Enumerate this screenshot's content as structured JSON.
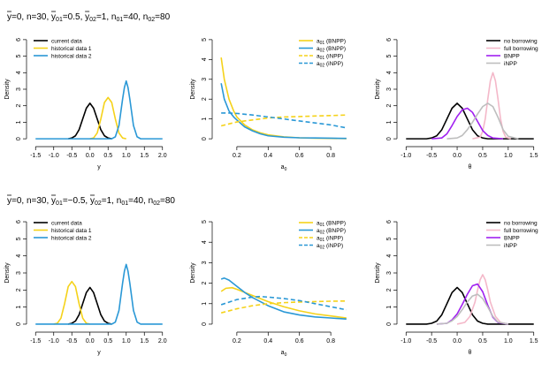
{
  "rows": [
    {
      "title": {
        "ybar": "y",
        "text1": "=0, n=30, ",
        "y01": "y",
        "sub01": "01",
        "text2": "=0.5, ",
        "y02": "y",
        "sub02": "02",
        "text3": "=1, n",
        "sub03": "01",
        "text4": "=40, n",
        "sub04": "02",
        "text5": "=80"
      }
    },
    {
      "title": {
        "ybar": "y",
        "text1": "=0, n=30, ",
        "y01": "y",
        "sub01": "01",
        "text2": "=−0.5, ",
        "y02": "y",
        "sub02": "02",
        "text3": "=1, n",
        "sub03": "01",
        "text4": "=40, n",
        "sub04": "02",
        "text5": "=80"
      }
    }
  ],
  "chart_data": [
    {
      "type": "line",
      "row": 0,
      "col": 0,
      "xlabel": "y",
      "ylabel": "Density",
      "xlim": [
        -1.5,
        2.0
      ],
      "ylim": [
        0,
        6
      ],
      "xticks": [
        "-1.5",
        "-1.0",
        "-0.5",
        "0.0",
        "0.5",
        "1.0",
        "1.5",
        "2.0"
      ],
      "yticks": [
        "0",
        "1",
        "2",
        "3",
        "4",
        "5",
        "6"
      ],
      "legend": {
        "position": "top-left",
        "entries": [
          {
            "label": "current data",
            "color": "#000000",
            "dash": false
          },
          {
            "label": "historical data 1",
            "color": "#F5D21A",
            "dash": false
          },
          {
            "label": "historical data 2",
            "color": "#2A98D6",
            "dash": false
          }
        ]
      },
      "series": [
        {
          "name": "current data",
          "color": "#000000",
          "dash": false,
          "x": [
            -0.6,
            -0.5,
            -0.4,
            -0.3,
            -0.2,
            -0.1,
            0.0,
            0.1,
            0.2,
            0.3,
            0.4,
            0.5,
            0.6
          ],
          "y": [
            0.0,
            0.05,
            0.18,
            0.55,
            1.2,
            1.85,
            2.15,
            1.85,
            1.2,
            0.55,
            0.18,
            0.05,
            0.0
          ]
        },
        {
          "name": "historical data 1",
          "color": "#F5D21A",
          "dash": false,
          "x": [
            0.0,
            0.1,
            0.2,
            0.3,
            0.4,
            0.5,
            0.6,
            0.7,
            0.8,
            0.9,
            1.0
          ],
          "y": [
            0.0,
            0.05,
            0.35,
            1.2,
            2.2,
            2.5,
            2.2,
            1.2,
            0.35,
            0.05,
            0.0
          ]
        },
        {
          "name": "historical data 2",
          "color": "#2A98D6",
          "dash": false,
          "x": [
            -1.5,
            0.6,
            0.7,
            0.8,
            0.9,
            0.95,
            1.0,
            1.05,
            1.1,
            1.2,
            1.3,
            1.4,
            2.0
          ],
          "y": [
            0.0,
            0.0,
            0.12,
            0.8,
            2.4,
            3.1,
            3.5,
            3.1,
            2.4,
            0.8,
            0.12,
            0.0,
            0.0
          ]
        }
      ]
    },
    {
      "type": "line",
      "row": 0,
      "col": 1,
      "xlabel": "a0",
      "ylabel": "Density",
      "xlim": [
        0.1,
        0.9
      ],
      "ylim": [
        0,
        5
      ],
      "xticks": [
        "0.2",
        "0.4",
        "0.6",
        "0.8"
      ],
      "yticks": [
        "0",
        "1",
        "2",
        "3",
        "4",
        "5"
      ],
      "legend": {
        "position": "top-right",
        "entries": [
          {
            "label": "a01 (BNPP)",
            "color": "#F5D21A",
            "dash": false
          },
          {
            "label": "a02 (BNPP)",
            "color": "#2A98D6",
            "dash": false
          },
          {
            "label": "a01 (iNPP)",
            "color": "#F5D21A",
            "dash": true
          },
          {
            "label": "a02 (iNPP)",
            "color": "#2A98D6",
            "dash": true
          }
        ]
      },
      "series": [
        {
          "name": "a01 (BNPP)",
          "color": "#F5D21A",
          "dash": false,
          "x": [
            0.1,
            0.12,
            0.15,
            0.18,
            0.2,
            0.25,
            0.3,
            0.35,
            0.4,
            0.5,
            0.6,
            0.7,
            0.8,
            0.9
          ],
          "y": [
            4.1,
            3.0,
            2.0,
            1.4,
            1.1,
            0.7,
            0.45,
            0.3,
            0.2,
            0.1,
            0.05,
            0.03,
            0.02,
            0.01
          ]
        },
        {
          "name": "a02 (BNPP)",
          "color": "#2A98D6",
          "dash": false,
          "x": [
            0.1,
            0.12,
            0.15,
            0.18,
            0.2,
            0.25,
            0.3,
            0.35,
            0.4,
            0.5,
            0.6,
            0.7,
            0.8,
            0.9
          ],
          "y": [
            2.8,
            2.0,
            1.4,
            1.1,
            0.95,
            0.6,
            0.4,
            0.25,
            0.15,
            0.08,
            0.05,
            0.04,
            0.03,
            0.02
          ]
        },
        {
          "name": "a01 (iNPP)",
          "color": "#F5D21A",
          "dash": true,
          "x": [
            0.1,
            0.2,
            0.3,
            0.4,
            0.5,
            0.6,
            0.7,
            0.8,
            0.9
          ],
          "y": [
            0.65,
            0.85,
            0.95,
            1.05,
            1.1,
            1.12,
            1.15,
            1.17,
            1.2
          ]
        },
        {
          "name": "a02 (iNPP)",
          "color": "#2A98D6",
          "dash": true,
          "x": [
            0.1,
            0.15,
            0.2,
            0.3,
            0.4,
            0.5,
            0.6,
            0.7,
            0.8,
            0.9
          ],
          "y": [
            1.3,
            1.3,
            1.28,
            1.2,
            1.1,
            1.0,
            0.9,
            0.8,
            0.7,
            0.55
          ]
        }
      ]
    },
    {
      "type": "line",
      "row": 0,
      "col": 2,
      "xlabel": "θ",
      "ylabel": "Density",
      "xlim": [
        -1.0,
        1.5
      ],
      "ylim": [
        0,
        6
      ],
      "xticks": [
        "-1.0",
        "-0.5",
        "0.0",
        "0.5",
        "1.0",
        "1.5"
      ],
      "yticks": [
        "0",
        "1",
        "2",
        "3",
        "4",
        "5",
        "6"
      ],
      "legend": {
        "position": "top-right",
        "entries": [
          {
            "label": "no borrowing",
            "color": "#000000",
            "dash": false
          },
          {
            "label": "full borrowing",
            "color": "#F4B8C9",
            "dash": false
          },
          {
            "label": "BNPP",
            "color": "#A020F0",
            "dash": false
          },
          {
            "label": "iNPP",
            "color": "#BEBEBE",
            "dash": false
          }
        ]
      },
      "series": [
        {
          "name": "no borrowing",
          "color": "#000000",
          "dash": false,
          "x": [
            -1.0,
            -0.6,
            -0.5,
            -0.4,
            -0.3,
            -0.2,
            -0.1,
            0.0,
            0.1,
            0.2,
            0.3,
            0.4,
            0.5,
            0.6,
            1.5
          ],
          "y": [
            0.0,
            0.0,
            0.05,
            0.18,
            0.55,
            1.2,
            1.85,
            2.15,
            1.85,
            1.2,
            0.55,
            0.18,
            0.05,
            0.0,
            0.0
          ]
        },
        {
          "name": "full borrowing",
          "color": "#F4B8C9",
          "dash": false,
          "x": [
            0.3,
            0.45,
            0.5,
            0.55,
            0.6,
            0.65,
            0.7,
            0.75,
            0.8,
            0.85,
            0.9,
            0.95,
            1.05
          ],
          "y": [
            0.0,
            0.1,
            0.45,
            1.2,
            2.4,
            3.5,
            4.0,
            3.5,
            2.4,
            1.2,
            0.45,
            0.1,
            0.0
          ]
        },
        {
          "name": "BNPP",
          "color": "#A020F0",
          "dash": false,
          "x": [
            -0.5,
            -0.3,
            -0.2,
            -0.1,
            0.0,
            0.1,
            0.2,
            0.3,
            0.4,
            0.5,
            0.6,
            0.7,
            0.9
          ],
          "y": [
            0.0,
            0.05,
            0.3,
            0.8,
            1.35,
            1.75,
            1.85,
            1.6,
            1.05,
            0.5,
            0.2,
            0.05,
            0.0
          ]
        },
        {
          "name": "iNPP",
          "color": "#BEBEBE",
          "dash": false,
          "x": [
            -0.2,
            0.0,
            0.1,
            0.2,
            0.3,
            0.4,
            0.5,
            0.6,
            0.7,
            0.8,
            0.9,
            1.0,
            1.2
          ],
          "y": [
            0.0,
            0.05,
            0.2,
            0.55,
            1.0,
            1.5,
            1.95,
            2.15,
            1.95,
            1.3,
            0.55,
            0.15,
            0.0
          ]
        }
      ]
    },
    {
      "type": "line",
      "row": 1,
      "col": 0,
      "xlabel": "y",
      "ylabel": "Density",
      "xlim": [
        -1.5,
        2.0
      ],
      "ylim": [
        0,
        6
      ],
      "xticks": [
        "-1.5",
        "-1.0",
        "-0.5",
        "0.0",
        "0.5",
        "1.0",
        "1.5",
        "2.0"
      ],
      "yticks": [
        "0",
        "1",
        "2",
        "3",
        "4",
        "5",
        "6"
      ],
      "legend": {
        "position": "top-left",
        "entries": [
          {
            "label": "current data",
            "color": "#000000",
            "dash": false
          },
          {
            "label": "historical data 1",
            "color": "#F5D21A",
            "dash": false
          },
          {
            "label": "historical data 2",
            "color": "#2A98D6",
            "dash": false
          }
        ]
      },
      "series": [
        {
          "name": "current data",
          "color": "#000000",
          "dash": false,
          "x": [
            -0.6,
            -0.5,
            -0.4,
            -0.3,
            -0.2,
            -0.1,
            0.0,
            0.1,
            0.2,
            0.3,
            0.4,
            0.5,
            0.6
          ],
          "y": [
            0.0,
            0.05,
            0.18,
            0.55,
            1.2,
            1.85,
            2.15,
            1.85,
            1.2,
            0.55,
            0.18,
            0.05,
            0.0
          ]
        },
        {
          "name": "historical data 1",
          "color": "#F5D21A",
          "dash": false,
          "x": [
            -1.0,
            -0.9,
            -0.8,
            -0.7,
            -0.6,
            -0.5,
            -0.4,
            -0.3,
            -0.2,
            -0.1,
            0.0
          ],
          "y": [
            0.0,
            0.05,
            0.35,
            1.2,
            2.2,
            2.5,
            2.2,
            1.2,
            0.35,
            0.05,
            0.0
          ]
        },
        {
          "name": "historical data 2",
          "color": "#2A98D6",
          "dash": false,
          "x": [
            -1.5,
            0.6,
            0.7,
            0.8,
            0.9,
            0.95,
            1.0,
            1.05,
            1.1,
            1.2,
            1.3,
            1.4,
            2.0
          ],
          "y": [
            0.0,
            0.0,
            0.12,
            0.8,
            2.4,
            3.1,
            3.5,
            3.1,
            2.4,
            0.8,
            0.12,
            0.0,
            0.0
          ]
        }
      ]
    },
    {
      "type": "line",
      "row": 1,
      "col": 1,
      "xlabel": "a0",
      "ylabel": "Density",
      "xlim": [
        0.1,
        0.9
      ],
      "ylim": [
        0,
        5
      ],
      "xticks": [
        "0.2",
        "0.4",
        "0.6",
        "0.8"
      ],
      "yticks": [
        "0",
        "1",
        "2",
        "3",
        "4",
        "5"
      ],
      "legend": {
        "position": "top-right",
        "entries": [
          {
            "label": "a01 (BNPP)",
            "color": "#F5D21A",
            "dash": false
          },
          {
            "label": "a02 (BNPP)",
            "color": "#2A98D6",
            "dash": false
          },
          {
            "label": "a01 (iNPP)",
            "color": "#F5D21A",
            "dash": true
          },
          {
            "label": "a02 (iNPP)",
            "color": "#2A98D6",
            "dash": true
          }
        ]
      },
      "series": [
        {
          "name": "a01 (BNPP)",
          "color": "#F5D21A",
          "dash": false,
          "x": [
            0.1,
            0.13,
            0.17,
            0.2,
            0.25,
            0.3,
            0.4,
            0.5,
            0.6,
            0.7,
            0.8,
            0.9
          ],
          "y": [
            1.6,
            1.75,
            1.78,
            1.7,
            1.55,
            1.4,
            1.1,
            0.85,
            0.65,
            0.5,
            0.4,
            0.3
          ]
        },
        {
          "name": "a02 (BNPP)",
          "color": "#2A98D6",
          "dash": false,
          "x": [
            0.1,
            0.12,
            0.15,
            0.2,
            0.25,
            0.3,
            0.4,
            0.5,
            0.6,
            0.7,
            0.8,
            0.9
          ],
          "y": [
            2.2,
            2.25,
            2.15,
            1.85,
            1.55,
            1.3,
            0.9,
            0.6,
            0.45,
            0.35,
            0.3,
            0.25
          ]
        },
        {
          "name": "a01 (iNPP)",
          "color": "#F5D21A",
          "dash": true,
          "x": [
            0.1,
            0.2,
            0.3,
            0.4,
            0.5,
            0.6,
            0.7,
            0.8,
            0.9
          ],
          "y": [
            0.55,
            0.75,
            0.9,
            1.0,
            1.05,
            1.08,
            1.1,
            1.12,
            1.13
          ]
        },
        {
          "name": "a02 (iNPP)",
          "color": "#2A98D6",
          "dash": true,
          "x": [
            0.1,
            0.2,
            0.3,
            0.35,
            0.4,
            0.5,
            0.6,
            0.7,
            0.8,
            0.9
          ],
          "y": [
            0.95,
            1.2,
            1.32,
            1.35,
            1.32,
            1.25,
            1.15,
            1.0,
            0.85,
            0.7
          ]
        }
      ]
    },
    {
      "type": "line",
      "row": 1,
      "col": 2,
      "xlabel": "θ",
      "ylabel": "Density",
      "xlim": [
        -1.0,
        1.5
      ],
      "ylim": [
        0,
        6
      ],
      "xticks": [
        "-1.0",
        "-0.5",
        "0.0",
        "0.5",
        "1.0",
        "1.5"
      ],
      "yticks": [
        "0",
        "1",
        "2",
        "3",
        "4",
        "5",
        "6"
      ],
      "legend": {
        "position": "top-right",
        "entries": [
          {
            "label": "no borrowing",
            "color": "#000000",
            "dash": false
          },
          {
            "label": "full borrowing",
            "color": "#F4B8C9",
            "dash": false
          },
          {
            "label": "BNPP",
            "color": "#A020F0",
            "dash": false
          },
          {
            "label": "iNPP",
            "color": "#BEBEBE",
            "dash": false
          }
        ]
      },
      "series": [
        {
          "name": "no borrowing",
          "color": "#000000",
          "dash": false,
          "x": [
            -1.0,
            -0.6,
            -0.5,
            -0.4,
            -0.3,
            -0.2,
            -0.1,
            0.0,
            0.1,
            0.2,
            0.3,
            0.4,
            0.5,
            0.6,
            1.5
          ],
          "y": [
            0.0,
            0.0,
            0.05,
            0.18,
            0.55,
            1.2,
            1.85,
            2.15,
            1.85,
            1.2,
            0.55,
            0.18,
            0.05,
            0.0,
            0.0
          ]
        },
        {
          "name": "full borrowing",
          "color": "#F4B8C9",
          "dash": false,
          "x": [
            0.0,
            0.15,
            0.25,
            0.35,
            0.4,
            0.45,
            0.5,
            0.55,
            0.6,
            0.65,
            0.75,
            0.85,
            1.0
          ],
          "y": [
            0.0,
            0.1,
            0.45,
            1.3,
            2.0,
            2.6,
            2.9,
            2.6,
            2.0,
            1.3,
            0.45,
            0.1,
            0.0
          ]
        },
        {
          "name": "BNPP",
          "color": "#A020F0",
          "dash": false,
          "x": [
            -0.4,
            -0.2,
            -0.1,
            0.0,
            0.1,
            0.2,
            0.3,
            0.4,
            0.5,
            0.6,
            0.7,
            0.8,
            1.0
          ],
          "y": [
            0.0,
            0.05,
            0.25,
            0.6,
            1.15,
            1.75,
            2.25,
            2.35,
            1.9,
            1.1,
            0.4,
            0.1,
            0.0
          ]
        },
        {
          "name": "iNPP",
          "color": "#BEBEBE",
          "dash": false,
          "x": [
            -0.4,
            -0.2,
            -0.1,
            0.0,
            0.1,
            0.2,
            0.3,
            0.4,
            0.5,
            0.6,
            0.7,
            0.8,
            1.0
          ],
          "y": [
            0.0,
            0.05,
            0.2,
            0.45,
            0.85,
            1.3,
            1.65,
            1.75,
            1.5,
            1.0,
            0.45,
            0.12,
            0.0
          ]
        }
      ]
    }
  ]
}
